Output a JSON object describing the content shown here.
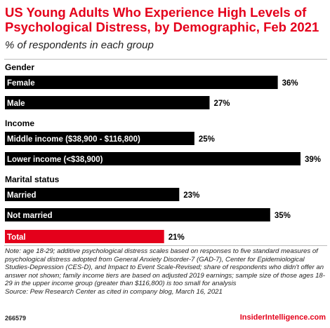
{
  "header": {
    "title": "US Young Adults Who Experience High Levels of Psychological Distress, by Demographic, Feb 2021",
    "subtitle": "% of respondents in each group"
  },
  "chart_data": {
    "type": "bar",
    "orientation": "horizontal",
    "title": "US Young Adults Who Experience High Levels of Psychological Distress, by Demographic, Feb 2021",
    "subtitle": "% of respondents in each group",
    "xlim": [
      0,
      39
    ],
    "grid": false,
    "legend": "none",
    "groups": [
      {
        "name": "Gender",
        "items": [
          {
            "label": "Female",
            "value": 36,
            "value_label": "36%"
          },
          {
            "label": "Male",
            "value": 27,
            "value_label": "27%"
          }
        ]
      },
      {
        "name": "Income",
        "items": [
          {
            "label": "Middle income ($38,900 - $116,800)",
            "value": 25,
            "value_label": "25%"
          },
          {
            "label": "Lower income (<$38,900)",
            "value": 39,
            "value_label": "39%"
          }
        ]
      },
      {
        "name": "Marital status",
        "items": [
          {
            "label": "Married",
            "value": 23,
            "value_label": "23%"
          },
          {
            "label": "Not married",
            "value": 35,
            "value_label": "35%"
          }
        ]
      },
      {
        "name": "",
        "items": [
          {
            "label": "Total",
            "value": 21,
            "value_label": "21%",
            "highlight": true
          }
        ]
      }
    ]
  },
  "colors": {
    "bar": "#000000",
    "highlight": "#e4001b",
    "accent": "#e4001b"
  },
  "footer": {
    "note": "Note: age 18-29; additive psychological distress scales based on responses to five standard measures of psychological distress adopted from General Anxiety Disorder-7 (GAD-7), Center for Epidemiological Studies-Depression (CES-D), and Impact to Event Scale-Revised; share of respondents who didn't offer an answer not shown; family income tiers are based on adjusted 2019 earnings; sample size of those ages 18-29 in the upper income group (greater than $116,800) is too small for analysis",
    "source": "Source: Pew Research Center as cited in company blog, March 16, 2021",
    "chart_id": "266579",
    "brand": "InsiderIntelligence.com"
  }
}
